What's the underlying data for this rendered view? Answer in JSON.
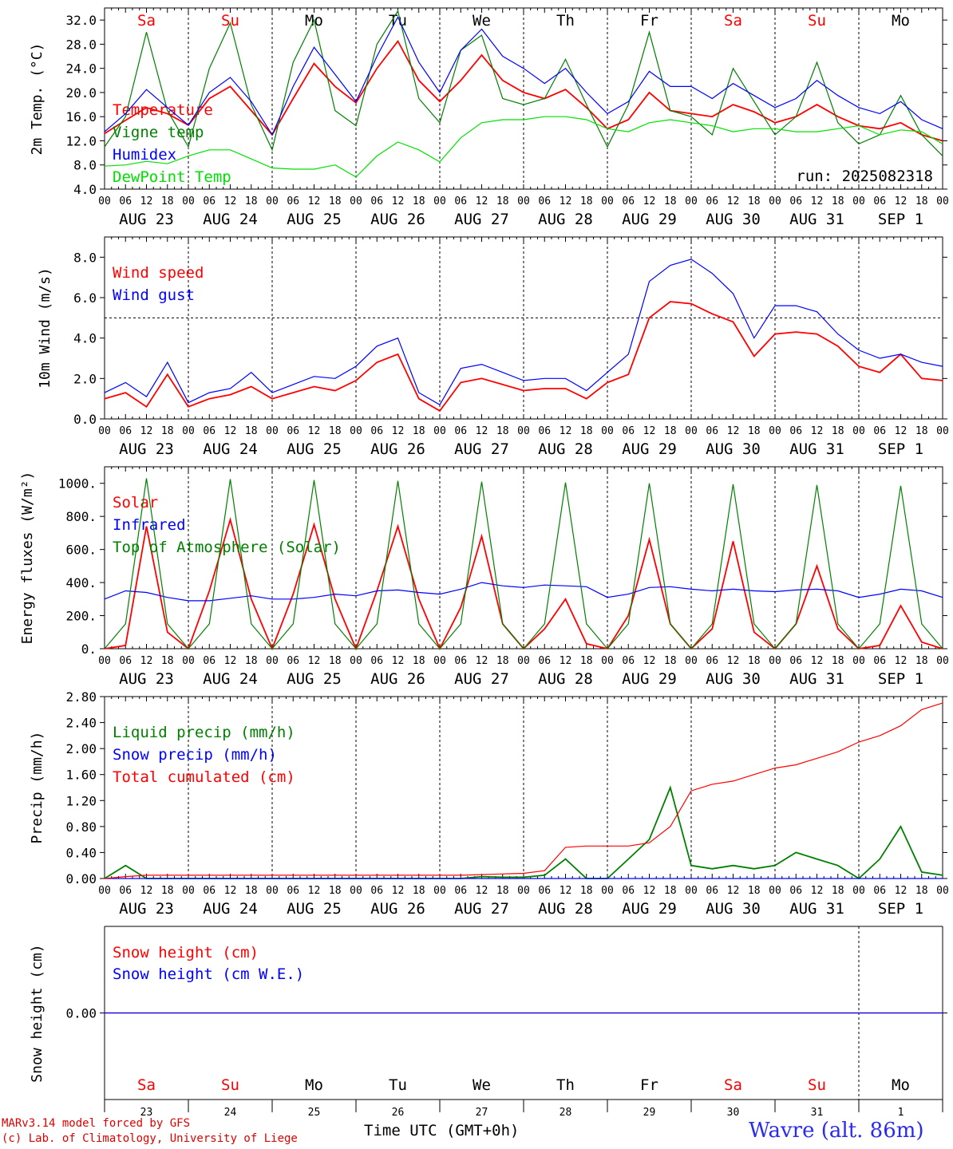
{
  "chart_data": [
    {
      "type": "line",
      "ylabel": "2m Temp. (°C)",
      "ylim": [
        4,
        34
      ],
      "yticks": [
        "4.0",
        "8.0",
        "12.0",
        "16.0",
        "20.0",
        "24.0",
        "28.0",
        "32.0"
      ],
      "x_hours": [
        0,
        6,
        12,
        18,
        24,
        30,
        36,
        42,
        48,
        54,
        60,
        66,
        72,
        78,
        84,
        90,
        96,
        102,
        108,
        114,
        120,
        126,
        132,
        138,
        144,
        150,
        156,
        162,
        168,
        174,
        180,
        186,
        192,
        198,
        204,
        210,
        216,
        222,
        228,
        234,
        240
      ],
      "series": [
        {
          "name": "Temperature",
          "color": "#ff0000",
          "values": [
            13.2,
            15.4,
            17.5,
            16.5,
            14.6,
            19.0,
            21.0,
            17.0,
            13.0,
            19.0,
            24.8,
            21.0,
            18.3,
            24.0,
            28.5,
            22.0,
            18.5,
            22.0,
            26.2,
            22.0,
            20.0,
            19.0,
            20.5,
            17.5,
            14.0,
            15.5,
            20.0,
            17.0,
            16.5,
            16.0,
            18.0,
            16.8,
            15.0,
            16.0,
            18.0,
            16.0,
            14.5,
            14.0,
            15.0,
            13.0,
            12.0
          ]
        },
        {
          "name": "Vigne temp",
          "color": "#008000",
          "values": [
            11.0,
            16.0,
            30.0,
            17.0,
            11.0,
            24.0,
            31.5,
            18.0,
            10.5,
            25.0,
            32.0,
            17.0,
            14.5,
            28.0,
            33.5,
            19.0,
            15.0,
            27.0,
            29.5,
            19.0,
            18.0,
            19.0,
            25.5,
            18.0,
            11.0,
            18.0,
            30.0,
            17.0,
            16.0,
            13.0,
            24.0,
            18.5,
            13.0,
            16.0,
            25.0,
            15.0,
            11.5,
            13.0,
            19.5,
            13.0,
            9.5
          ]
        },
        {
          "name": "Humidex",
          "color": "#0000ff",
          "values": [
            13.5,
            16.5,
            20.5,
            17.5,
            14.6,
            20.0,
            22.5,
            18.5,
            13.0,
            21.0,
            27.5,
            23.0,
            18.5,
            26.0,
            32.5,
            25.0,
            20.0,
            27.0,
            30.5,
            26.0,
            24.0,
            21.5,
            24.0,
            20.0,
            16.5,
            18.5,
            23.5,
            21.0,
            21.0,
            19.0,
            21.5,
            19.5,
            17.5,
            19.0,
            22.0,
            19.5,
            17.5,
            16.5,
            18.5,
            15.5,
            14.0
          ]
        },
        {
          "name": "DewPoint Temp",
          "color": "#00e000",
          "values": [
            7.8,
            8.0,
            8.6,
            8.2,
            9.5,
            10.5,
            10.5,
            9.0,
            7.5,
            7.3,
            7.3,
            8.0,
            6.0,
            9.5,
            11.8,
            10.5,
            8.5,
            12.5,
            15.0,
            15.5,
            15.5,
            16.0,
            16.0,
            15.5,
            14.0,
            13.5,
            15.0,
            15.5,
            15.0,
            14.5,
            13.5,
            14.0,
            14.0,
            13.5,
            13.5,
            14.0,
            14.5,
            13.0,
            13.8,
            13.5,
            11.5
          ]
        }
      ],
      "annotations": [
        "run: 2025082318"
      ]
    },
    {
      "type": "line",
      "ylabel": "10m Wind (m/s)",
      "ylim": [
        0,
        9
      ],
      "yticks": [
        "0.0",
        "2.0",
        "4.0",
        "6.0",
        "8.0"
      ],
      "reference_line": 5.0,
      "x_hours": [
        0,
        6,
        12,
        18,
        24,
        30,
        36,
        42,
        48,
        54,
        60,
        66,
        72,
        78,
        84,
        90,
        96,
        102,
        108,
        114,
        120,
        126,
        132,
        138,
        144,
        150,
        156,
        162,
        168,
        174,
        180,
        186,
        192,
        198,
        204,
        210,
        216,
        222,
        228,
        234,
        240
      ],
      "series": [
        {
          "name": "Wind speed",
          "color": "#ff0000",
          "values": [
            1.0,
            1.3,
            0.6,
            2.2,
            0.6,
            1.0,
            1.2,
            1.6,
            1.0,
            1.3,
            1.6,
            1.4,
            1.9,
            2.8,
            3.2,
            1.0,
            0.4,
            1.8,
            2.0,
            1.7,
            1.4,
            1.5,
            1.5,
            1.0,
            1.8,
            2.2,
            5.0,
            5.8,
            5.7,
            5.2,
            4.8,
            3.1,
            4.2,
            4.3,
            4.2,
            3.6,
            2.6,
            2.3,
            3.2,
            2.0,
            1.9
          ]
        },
        {
          "name": "Wind gust",
          "color": "#0000ff",
          "values": [
            1.3,
            1.8,
            1.1,
            2.8,
            0.8,
            1.3,
            1.5,
            2.3,
            1.3,
            1.7,
            2.1,
            2.0,
            2.6,
            3.6,
            4.0,
            1.3,
            0.7,
            2.5,
            2.7,
            2.3,
            1.9,
            2.0,
            2.0,
            1.4,
            2.3,
            3.2,
            6.8,
            7.6,
            7.9,
            7.2,
            6.2,
            4.0,
            5.6,
            5.6,
            5.3,
            4.2,
            3.4,
            3.0,
            3.2,
            2.8,
            2.6
          ]
        }
      ]
    },
    {
      "type": "line",
      "ylabel": "Energy fluxes (W/m²)",
      "ylim": [
        0,
        1100
      ],
      "yticks": [
        "0.",
        "200.",
        "400.",
        "600.",
        "800.",
        "1000."
      ],
      "x_hours": [
        0,
        6,
        12,
        18,
        24,
        30,
        36,
        42,
        48,
        54,
        60,
        66,
        72,
        78,
        84,
        90,
        96,
        102,
        108,
        114,
        120,
        126,
        132,
        138,
        144,
        150,
        156,
        162,
        168,
        174,
        180,
        186,
        192,
        198,
        204,
        210,
        216,
        222,
        228,
        234,
        240
      ],
      "series": [
        {
          "name": "Solar",
          "color": "#ff0000",
          "values": [
            0,
            20,
            740,
            100,
            0,
            350,
            780,
            300,
            0,
            330,
            750,
            300,
            0,
            350,
            740,
            300,
            0,
            250,
            680,
            150,
            0,
            120,
            300,
            30,
            0,
            200,
            660,
            150,
            0,
            120,
            650,
            100,
            0,
            150,
            500,
            120,
            0,
            20,
            260,
            40,
            0
          ]
        },
        {
          "name": "Infrared",
          "color": "#0000ff",
          "values": [
            300,
            350,
            340,
            310,
            290,
            290,
            305,
            320,
            300,
            300,
            310,
            330,
            320,
            350,
            355,
            340,
            330,
            360,
            400,
            380,
            370,
            385,
            380,
            375,
            310,
            330,
            370,
            375,
            360,
            350,
            360,
            350,
            345,
            355,
            360,
            350,
            310,
            330,
            360,
            350,
            310
          ]
        },
        {
          "name": "Top of Atmosphere (Solar)",
          "color": "#008000",
          "values": [
            0,
            150,
            1030,
            150,
            0,
            150,
            1025,
            150,
            0,
            150,
            1020,
            150,
            0,
            150,
            1015,
            150,
            0,
            150,
            1010,
            150,
            0,
            150,
            1005,
            150,
            0,
            150,
            1000,
            150,
            0,
            150,
            995,
            150,
            0,
            150,
            990,
            150,
            0,
            150,
            985,
            150,
            0
          ]
        }
      ]
    },
    {
      "type": "line",
      "ylabel": "Precip (mm/h)",
      "ylim": [
        0,
        2.8
      ],
      "yticks": [
        "0.00",
        "0.40",
        "0.80",
        "1.20",
        "1.60",
        "2.00",
        "2.40",
        "2.80"
      ],
      "x_hours": [
        0,
        6,
        12,
        18,
        24,
        30,
        36,
        42,
        48,
        54,
        60,
        66,
        72,
        78,
        84,
        90,
        96,
        102,
        108,
        114,
        120,
        126,
        132,
        138,
        144,
        150,
        156,
        162,
        168,
        174,
        180,
        186,
        192,
        198,
        204,
        210,
        216,
        222,
        228,
        234,
        240
      ],
      "series": [
        {
          "name": "Liquid precip (mm/h)",
          "color": "#008000",
          "values": [
            0,
            0.2,
            0,
            0,
            0,
            0,
            0,
            0,
            0,
            0,
            0,
            0,
            0,
            0,
            0,
            0,
            0,
            0,
            0.03,
            0.02,
            0.02,
            0.05,
            0.3,
            0,
            0,
            0.3,
            0.6,
            1.4,
            0.2,
            0.15,
            0.2,
            0.15,
            0.2,
            0.4,
            0.3,
            0.2,
            0,
            0.3,
            0.8,
            0.1,
            0.05
          ]
        },
        {
          "name": "Snow precip (mm/h)",
          "color": "#0000ff",
          "values": [
            0,
            0,
            0,
            0,
            0,
            0,
            0,
            0,
            0,
            0,
            0,
            0,
            0,
            0,
            0,
            0,
            0,
            0,
            0,
            0,
            0,
            0,
            0,
            0,
            0,
            0,
            0,
            0,
            0,
            0,
            0,
            0,
            0,
            0,
            0,
            0,
            0,
            0,
            0,
            0,
            0
          ]
        },
        {
          "name": "Total cumulated (cm)",
          "color": "#ff0000",
          "values": [
            0,
            0.03,
            0.05,
            0.05,
            0.05,
            0.05,
            0.05,
            0.05,
            0.05,
            0.05,
            0.05,
            0.05,
            0.05,
            0.05,
            0.05,
            0.05,
            0.05,
            0.05,
            0.06,
            0.07,
            0.08,
            0.12,
            0.48,
            0.5,
            0.5,
            0.5,
            0.55,
            0.8,
            1.35,
            1.45,
            1.5,
            1.6,
            1.7,
            1.75,
            1.85,
            1.95,
            2.1,
            2.2,
            2.35,
            2.6,
            2.7
          ]
        }
      ]
    },
    {
      "type": "line",
      "ylabel": "Snow height (cm)",
      "yticks": [
        "0.00"
      ],
      "x_hours": [
        0,
        240
      ],
      "series": [
        {
          "name": "Snow height (cm)",
          "color": "#ff0000",
          "values": [
            0,
            0
          ]
        },
        {
          "name": "Snow height (cm W.E.)",
          "color": "#0000ff",
          "values": [
            0,
            0
          ]
        }
      ]
    }
  ],
  "xaxis": {
    "hour_labels": [
      "00",
      "06",
      "12",
      "18"
    ],
    "final_hour_label": "00",
    "date_labels": [
      "AUG 23",
      "AUG 24",
      "AUG 25",
      "AUG 26",
      "AUG 27",
      "AUG 28",
      "AUG 29",
      "AUG 30",
      "AUG 31",
      "SEP  1"
    ],
    "weekdays": [
      "Sa",
      "Su",
      "Mo",
      "Tu",
      "We",
      "Th",
      "Fr",
      "Sa",
      "Su",
      "Mo"
    ],
    "weekday_colors": [
      "#ff0000",
      "#ff0000",
      "#000000",
      "#000000",
      "#000000",
      "#000000",
      "#000000",
      "#ff0000",
      "#ff0000",
      "#000000"
    ],
    "day_numbers": [
      "23",
      "24",
      "25",
      "26",
      "27",
      "28",
      "29",
      "30",
      "31",
      "1"
    ],
    "xlabel": "Time UTC (GMT+0h)"
  },
  "footer": {
    "line1": "MARv3.14 model forced by GFS",
    "line2": "(c) Lab. of Climatology, University of Liege",
    "place": "Wavre (alt. 86m)"
  }
}
